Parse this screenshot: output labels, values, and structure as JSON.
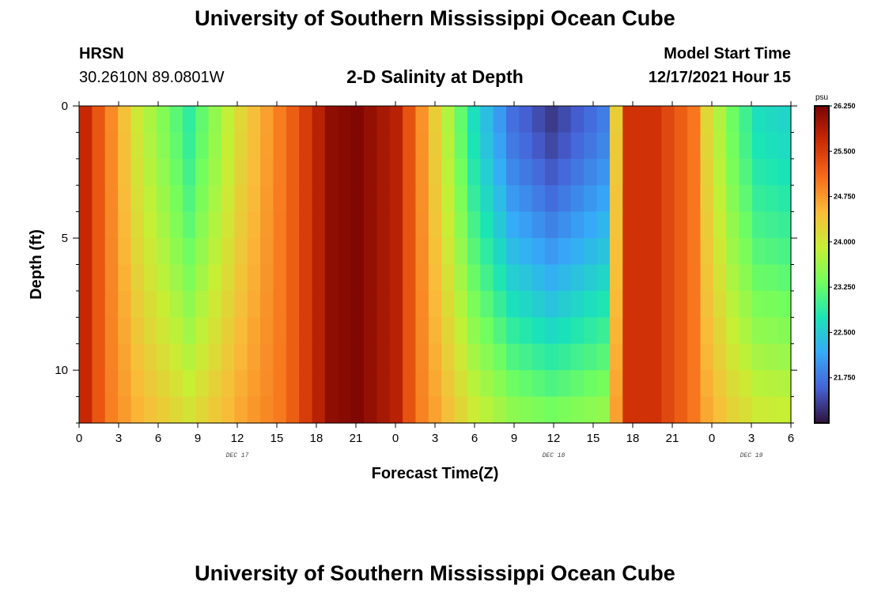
{
  "page": {
    "title_top": "University of Southern Mississippi Ocean Cube",
    "title_bottom": "University of Southern Mississippi Ocean Cube",
    "station_code": "HRSN",
    "station_coords": "30.2610N  89.0801W",
    "plot_title": "2-D Salinity at Depth",
    "model_label": "Model Start Time",
    "model_time": "12/17/2021 Hour 15"
  },
  "chart_data": {
    "type": "heatmap",
    "title": "2-D Salinity at Depth",
    "xlabel": "Forecast Time(Z)",
    "ylabel": "Depth (ft)",
    "ylim": [
      0,
      12
    ],
    "x_ticks": [
      "0",
      "3",
      "6",
      "9",
      "12",
      "15",
      "18",
      "21",
      "0",
      "3",
      "6",
      "9",
      "12",
      "15",
      "18",
      "21",
      "0",
      "3",
      "6"
    ],
    "y_ticks": [
      "0",
      "5",
      "10"
    ],
    "day_labels": [
      {
        "text": "DEC 17",
        "hour_index": 12
      },
      {
        "text": "DEC 18",
        "hour_index": 36
      },
      {
        "text": "DEC 19",
        "hour_index": 51
      }
    ],
    "colorbar": {
      "unit": "psu",
      "min": 21.0,
      "max": 26.25,
      "ticks": [
        "26.250",
        "25.500",
        "24.750",
        "24.000",
        "23.250",
        "22.500",
        "21.750"
      ],
      "tick_values": [
        26.25,
        25.5,
        24.75,
        24.0,
        23.25,
        22.5,
        21.75
      ],
      "colors": [
        "#30123b",
        "#4662d7",
        "#36aaf9",
        "#1ae4b6",
        "#72fe5e",
        "#c7ef34",
        "#fabb39",
        "#f66b19",
        "#cb2a04",
        "#7a0403"
      ]
    },
    "surface_profile_hours": [
      0,
      4,
      8,
      12,
      16,
      19,
      21,
      24,
      27,
      30,
      33,
      36,
      40,
      41,
      42,
      44,
      47,
      48,
      50,
      52,
      54
    ],
    "surface_profile_values": [
      25.7,
      24.0,
      22.9,
      24.2,
      25.2,
      26.1,
      26.2,
      25.8,
      24.3,
      22.7,
      21.7,
      21.3,
      21.8,
      24.3,
      25.6,
      25.6,
      25.0,
      24.2,
      23.3,
      22.7,
      22.6
    ],
    "band_rows": 12,
    "band_hours": 55
  }
}
